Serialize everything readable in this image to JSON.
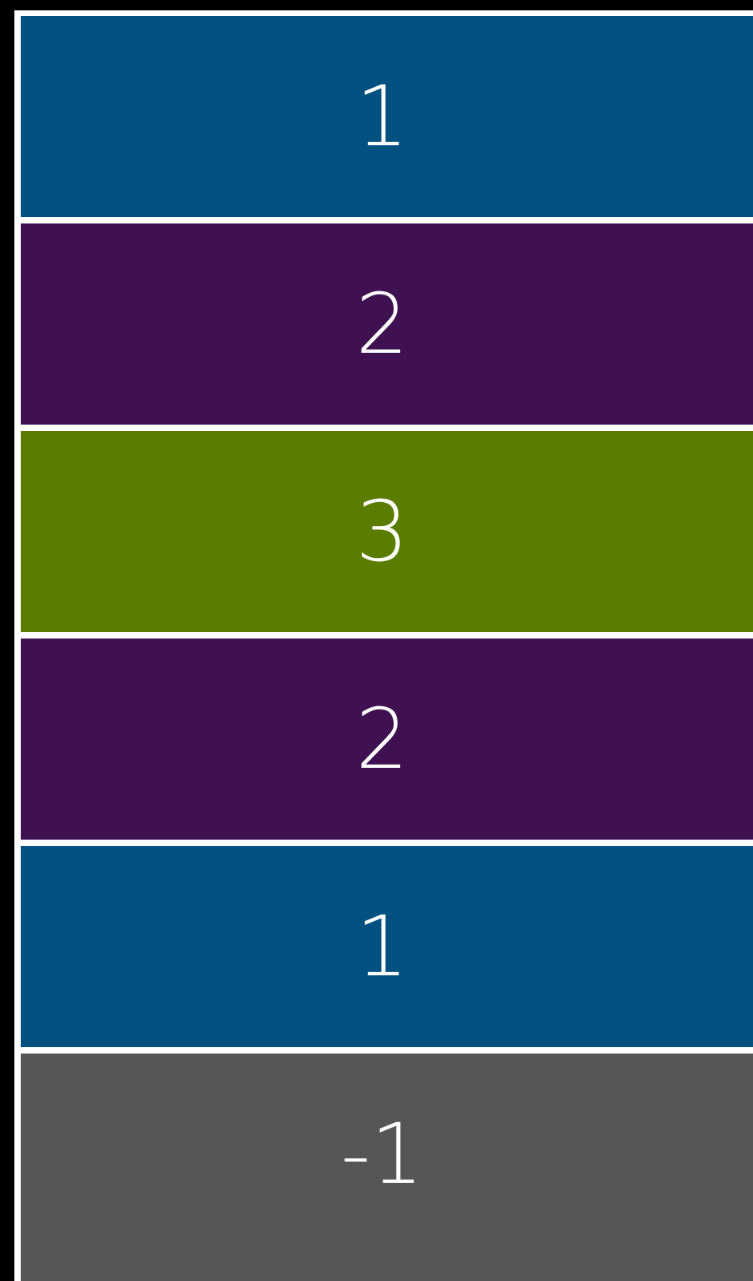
{
  "cells": [
    {
      "label": "1",
      "color": "#005080"
    },
    {
      "label": "2",
      "color": "#3f1150"
    },
    {
      "label": "3",
      "color": "#5a7d00"
    },
    {
      "label": "2",
      "color": "#3f1150"
    },
    {
      "label": "1",
      "color": "#005080"
    },
    {
      "label": "-1",
      "color": "#565656"
    }
  ]
}
